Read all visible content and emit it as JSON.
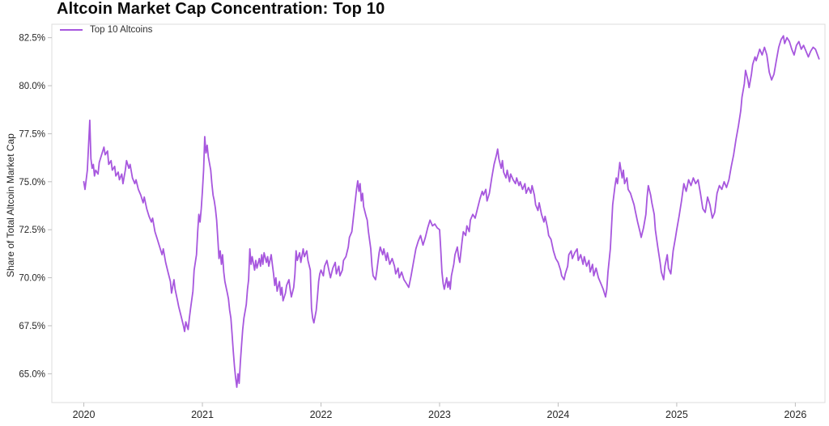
{
  "header": {
    "title": "Altcoin Market Cap Concentration: Top 10"
  },
  "legend": {
    "items": [
      {
        "label": "Top 10 Altcoins",
        "color": "#a757de"
      }
    ]
  },
  "chart_data": {
    "type": "line",
    "title": "Altcoin Market Cap Concentration: Top 10",
    "xlabel": "",
    "ylabel": "Share of Total Altcoin Market Cap",
    "legend_position": "top-left",
    "grid": false,
    "line_color": "#a757de",
    "axis_color": "#dcdcdc",
    "tick_color": "#bdbdbd",
    "text_color": "#262626",
    "xlim": [
      2019.73,
      2026.25
    ],
    "ylim": [
      63.5,
      83.2
    ],
    "x_ticks": [
      2020,
      2021,
      2022,
      2023,
      2024,
      2025,
      2026
    ],
    "y_ticks": [
      65.0,
      67.5,
      70.0,
      72.5,
      75.0,
      77.5,
      80.0,
      82.5
    ],
    "y_tick_suffix": "%",
    "series": [
      {
        "name": "Top 10 Altcoins",
        "x": [
          2020.0,
          2020.01,
          2020.03,
          2020.05,
          2020.06,
          2020.07,
          2020.08,
          2020.09,
          2020.1,
          2020.12,
          2020.13,
          2020.15,
          2020.17,
          2020.18,
          2020.2,
          2020.21,
          2020.23,
          2020.24,
          2020.26,
          2020.27,
          2020.29,
          2020.3,
          2020.32,
          2020.33,
          2020.35,
          2020.36,
          2020.38,
          2020.39,
          2020.41,
          2020.43,
          2020.44,
          2020.46,
          2020.48,
          2020.5,
          2020.51,
          2020.53,
          2020.55,
          2020.57,
          2020.58,
          2020.6,
          2020.62,
          2020.64,
          2020.66,
          2020.67,
          2020.69,
          2020.71,
          2020.73,
          2020.74,
          2020.76,
          2020.77,
          2020.79,
          2020.8,
          2020.82,
          2020.84,
          2020.85,
          2020.86,
          2020.88,
          2020.89,
          2020.9,
          2020.92,
          2020.93,
          2020.95,
          2020.96,
          2020.97,
          2020.98,
          2020.99,
          2021.0,
          2021.01,
          2021.02,
          2021.03,
          2021.04,
          2021.05,
          2021.07,
          2021.08,
          2021.09,
          2021.1,
          2021.11,
          2021.12,
          2021.13,
          2021.14,
          2021.15,
          2021.16,
          2021.17,
          2021.18,
          2021.19,
          2021.21,
          2021.22,
          2021.23,
          2021.24,
          2021.25,
          2021.26,
          2021.27,
          2021.28,
          2021.29,
          2021.3,
          2021.31,
          2021.32,
          2021.33,
          2021.34,
          2021.35,
          2021.37,
          2021.38,
          2021.39,
          2021.4,
          2021.41,
          2021.42,
          2021.44,
          2021.45,
          2021.46,
          2021.48,
          2021.49,
          2021.5,
          2021.51,
          2021.52,
          2021.54,
          2021.55,
          2021.56,
          2021.58,
          2021.59,
          2021.6,
          2021.61,
          2021.62,
          2021.63,
          2021.65,
          2021.66,
          2021.67,
          2021.68,
          2021.7,
          2021.71,
          2021.73,
          2021.74,
          2021.75,
          2021.77,
          2021.78,
          2021.79,
          2021.8,
          2021.82,
          2021.83,
          2021.85,
          2021.86,
          2021.88,
          2021.89,
          2021.91,
          2021.92,
          2021.93,
          2021.94,
          2021.96,
          2021.97,
          2021.98,
          2021.99,
          2022.0,
          2022.02,
          2022.03,
          2022.05,
          2022.07,
          2022.08,
          2022.1,
          2022.12,
          2022.13,
          2022.15,
          2022.16,
          2022.18,
          2022.19,
          2022.21,
          2022.23,
          2022.24,
          2022.26,
          2022.28,
          2022.3,
          2022.31,
          2022.32,
          2022.33,
          2022.34,
          2022.35,
          2022.36,
          2022.38,
          2022.39,
          2022.4,
          2022.42,
          2022.43,
          2022.44,
          2022.46,
          2022.47,
          2022.49,
          2022.5,
          2022.52,
          2022.53,
          2022.55,
          2022.56,
          2022.58,
          2022.6,
          2022.62,
          2022.63,
          2022.65,
          2022.66,
          2022.68,
          2022.7,
          2022.72,
          2022.74,
          2022.76,
          2022.78,
          2022.8,
          2022.82,
          2022.84,
          2022.86,
          2022.88,
          2022.9,
          2022.92,
          2022.94,
          2022.96,
          2022.98,
          2023.0,
          2023.01,
          2023.02,
          2023.03,
          2023.04,
          2023.06,
          2023.07,
          2023.08,
          2023.09,
          2023.1,
          2023.12,
          2023.13,
          2023.15,
          2023.16,
          2023.17,
          2023.19,
          2023.2,
          2023.22,
          2023.23,
          2023.25,
          2023.26,
          2023.28,
          2023.3,
          2023.32,
          2023.34,
          2023.36,
          2023.37,
          2023.39,
          2023.4,
          2023.42,
          2023.44,
          2023.46,
          2023.48,
          2023.49,
          2023.5,
          2023.52,
          2023.53,
          2023.54,
          2023.56,
          2023.57,
          2023.59,
          2023.6,
          2023.62,
          2023.64,
          2023.65,
          2023.67,
          2023.68,
          2023.7,
          2023.72,
          2023.73,
          2023.75,
          2023.77,
          2023.78,
          2023.8,
          2023.81,
          2023.83,
          2023.84,
          2023.86,
          2023.88,
          2023.89,
          2023.91,
          2023.92,
          2023.94,
          2023.96,
          2023.98,
          2024.0,
          2024.02,
          2024.03,
          2024.05,
          2024.06,
          2024.08,
          2024.09,
          2024.11,
          2024.12,
          2024.14,
          2024.16,
          2024.17,
          2024.19,
          2024.21,
          2024.22,
          2024.24,
          2024.26,
          2024.27,
          2024.29,
          2024.3,
          2024.32,
          2024.34,
          2024.36,
          2024.38,
          2024.4,
          2024.41,
          2024.42,
          2024.44,
          2024.45,
          2024.46,
          2024.48,
          2024.49,
          2024.5,
          2024.51,
          2024.52,
          2024.54,
          2024.55,
          2024.56,
          2024.58,
          2024.59,
          2024.61,
          2024.62,
          2024.64,
          2024.65,
          2024.67,
          2024.69,
          2024.7,
          2024.72,
          2024.74,
          2024.75,
          2024.76,
          2024.78,
          2024.79,
          2024.81,
          2024.82,
          2024.84,
          2024.86,
          2024.87,
          2024.89,
          2024.9,
          2024.92,
          2024.93,
          2024.95,
          2024.97,
          2024.99,
          2025.0,
          2025.02,
          2025.04,
          2025.06,
          2025.08,
          2025.1,
          2025.12,
          2025.14,
          2025.16,
          2025.18,
          2025.2,
          2025.22,
          2025.24,
          2025.26,
          2025.28,
          2025.3,
          2025.32,
          2025.34,
          2025.36,
          2025.38,
          2025.4,
          2025.42,
          2025.44,
          2025.46,
          2025.48,
          2025.5,
          2025.52,
          2025.54,
          2025.55,
          2025.57,
          2025.58,
          2025.6,
          2025.61,
          2025.63,
          2025.64,
          2025.66,
          2025.67,
          2025.69,
          2025.7,
          2025.72,
          2025.74,
          2025.76,
          2025.78,
          2025.8,
          2025.82,
          2025.84,
          2025.86,
          2025.88,
          2025.9,
          2025.91,
          2025.93,
          2025.95,
          2025.97,
          2025.99,
          2026.01,
          2026.03,
          2026.05,
          2026.07,
          2026.09,
          2026.11,
          2026.13,
          2026.15,
          2026.17,
          2026.2
        ],
        "values": [
          75.0,
          74.6,
          75.6,
          78.2,
          76.2,
          75.7,
          75.9,
          75.3,
          75.6,
          75.4,
          76.0,
          76.4,
          76.8,
          76.4,
          76.6,
          75.9,
          76.1,
          75.6,
          75.8,
          75.3,
          75.5,
          75.1,
          75.4,
          74.9,
          75.6,
          76.1,
          75.7,
          75.9,
          75.2,
          74.9,
          75.1,
          74.6,
          74.3,
          73.9,
          74.2,
          73.6,
          73.2,
          72.9,
          73.1,
          72.4,
          72.0,
          71.6,
          71.2,
          71.5,
          70.8,
          70.3,
          69.8,
          69.2,
          69.9,
          69.4,
          68.8,
          68.5,
          68.0,
          67.5,
          67.2,
          67.7,
          67.3,
          67.9,
          68.4,
          69.3,
          70.4,
          71.2,
          72.4,
          73.3,
          72.9,
          73.6,
          74.5,
          75.6,
          77.35,
          76.5,
          76.9,
          76.3,
          75.6,
          74.9,
          74.3,
          74.0,
          73.6,
          73.0,
          72.0,
          71.0,
          71.4,
          70.7,
          71.2,
          70.3,
          69.8,
          69.2,
          68.9,
          68.3,
          67.9,
          67.1,
          66.2,
          65.4,
          64.8,
          64.3,
          65.0,
          64.5,
          65.6,
          66.5,
          67.3,
          67.9,
          68.6,
          69.4,
          69.9,
          71.5,
          70.7,
          71.1,
          70.4,
          70.9,
          70.5,
          71.0,
          70.6,
          71.2,
          70.7,
          71.3,
          70.8,
          71.1,
          70.6,
          71.2,
          70.7,
          70.2,
          69.6,
          70.0,
          69.3,
          69.8,
          69.1,
          69.5,
          68.8,
          69.2,
          69.6,
          69.9,
          69.4,
          69.0,
          69.5,
          70.2,
          71.4,
          70.9,
          71.3,
          70.8,
          71.5,
          71.1,
          71.4,
          70.9,
          70.4,
          68.4,
          67.9,
          67.65,
          68.3,
          69.0,
          69.8,
          70.2,
          70.4,
          70.1,
          70.6,
          70.9,
          70.3,
          70.0,
          70.5,
          70.8,
          70.2,
          70.6,
          70.1,
          70.4,
          70.9,
          71.1,
          71.6,
          72.1,
          72.4,
          73.5,
          74.6,
          75.05,
          74.5,
          74.9,
          74.0,
          74.4,
          73.7,
          73.2,
          73.0,
          72.4,
          71.5,
          70.6,
          70.1,
          69.9,
          70.3,
          71.3,
          71.6,
          71.2,
          71.5,
          70.9,
          71.3,
          70.7,
          71.0,
          70.6,
          70.2,
          70.5,
          70.0,
          70.3,
          69.9,
          69.7,
          69.5,
          70.1,
          70.8,
          71.5,
          71.9,
          72.2,
          71.7,
          72.1,
          72.6,
          73.0,
          72.7,
          72.8,
          72.6,
          72.5,
          71.5,
          70.3,
          69.7,
          69.4,
          70.0,
          69.5,
          69.8,
          69.4,
          70.1,
          70.7,
          71.2,
          71.6,
          71.1,
          70.8,
          71.9,
          72.4,
          72.2,
          72.7,
          72.4,
          73.0,
          73.3,
          73.1,
          73.6,
          74.1,
          74.5,
          74.3,
          74.6,
          74.0,
          74.4,
          75.2,
          75.9,
          76.4,
          76.7,
          76.2,
          75.7,
          76.1,
          75.5,
          75.2,
          75.6,
          75.0,
          75.4,
          75.1,
          74.9,
          75.2,
          74.8,
          75.0,
          74.6,
          74.9,
          74.4,
          74.7,
          74.4,
          74.8,
          74.3,
          73.8,
          73.5,
          73.9,
          73.3,
          72.9,
          73.2,
          72.6,
          72.2,
          72.0,
          71.4,
          71.0,
          70.8,
          70.4,
          70.1,
          69.9,
          70.2,
          70.6,
          71.2,
          71.4,
          71.0,
          71.3,
          71.5,
          70.9,
          71.2,
          70.7,
          71.1,
          70.6,
          70.9,
          70.3,
          70.7,
          70.1,
          70.5,
          70.0,
          69.7,
          69.4,
          69.0,
          69.4,
          70.3,
          71.5,
          72.6,
          73.8,
          74.8,
          75.2,
          74.9,
          75.4,
          76.0,
          75.2,
          75.6,
          74.9,
          75.2,
          74.6,
          74.4,
          74.2,
          73.8,
          73.5,
          72.9,
          72.4,
          72.1,
          72.6,
          73.3,
          74.2,
          74.8,
          74.3,
          73.9,
          73.3,
          72.5,
          71.6,
          70.8,
          70.3,
          69.9,
          70.6,
          71.2,
          70.5,
          70.2,
          71.4,
          72.1,
          72.5,
          73.2,
          74.0,
          74.9,
          74.5,
          75.1,
          74.8,
          75.2,
          74.9,
          75.1,
          74.4,
          73.6,
          73.4,
          74.2,
          73.8,
          73.1,
          73.4,
          74.4,
          74.8,
          74.6,
          75.0,
          74.7,
          75.1,
          75.8,
          76.4,
          77.2,
          77.9,
          78.7,
          79.4,
          80.1,
          80.8,
          80.3,
          79.9,
          80.6,
          81.1,
          81.5,
          81.3,
          81.7,
          81.9,
          81.6,
          82.0,
          81.6,
          80.7,
          80.3,
          80.6,
          81.3,
          82.0,
          82.4,
          82.6,
          82.2,
          82.5,
          82.3,
          81.9,
          81.6,
          82.1,
          82.3,
          81.9,
          82.1,
          81.8,
          81.5,
          81.8,
          82.0,
          81.9,
          81.4
        ]
      }
    ]
  }
}
